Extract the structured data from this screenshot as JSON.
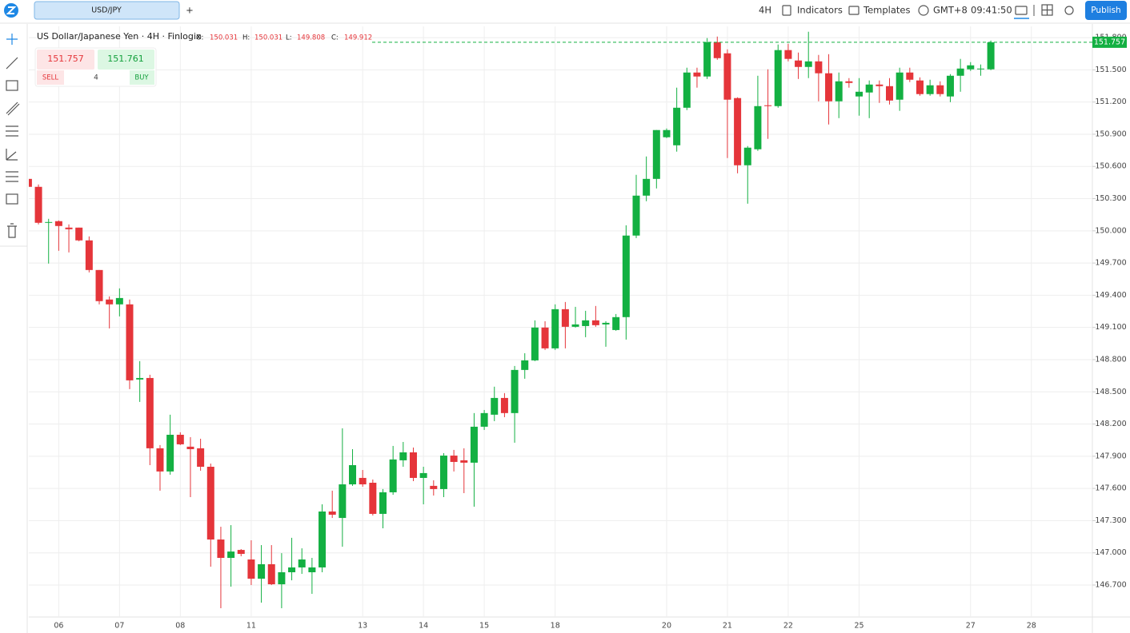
{
  "toolbar": {
    "tab": "USD/JPY",
    "add": "+",
    "interval": "4H",
    "indicators": "Indicators",
    "templates": "Templates",
    "timezone": "GMT+8",
    "clock": "09:41:50",
    "publish": "Publish"
  },
  "trade": {
    "sell_price": 151.757,
    "buy_price": 151.761,
    "sell": "SELL",
    "buy": "BUY",
    "quantity": 4
  },
  "chart_data": {
    "type": "candlestick",
    "title": "US Dollar/Japanese Yen · 4H · Finlogix",
    "ohlc_legend": [
      {
        "label": "O:",
        "value": 150.031
      },
      {
        "label": "H:",
        "value": 150.031
      },
      {
        "label": "L:",
        "value": 149.808
      },
      {
        "label": "C:",
        "value": 149.912
      }
    ],
    "up_color": "#13b042",
    "down_color": "#e5353a",
    "grid": true,
    "last_price": 151.757,
    "ylim": [
      146.402,
      151.905
    ],
    "yticks": [
      {
        "value": 146.7,
        "label": "146.700"
      },
      {
        "value": 147,
        "label": "147.000"
      },
      {
        "value": 147.3,
        "label": "147.300"
      },
      {
        "value": 147.6,
        "label": "147.600"
      },
      {
        "value": 147.9,
        "label": "147.900"
      },
      {
        "value": 148.2,
        "label": "148.200"
      },
      {
        "value": 148.5,
        "label": "148.500"
      },
      {
        "value": 148.8,
        "label": "148.800"
      },
      {
        "value": 149.1,
        "label": "149.100"
      },
      {
        "value": 149.4,
        "label": "149.400"
      },
      {
        "value": 149.7,
        "label": "149.700"
      },
      {
        "value": 150,
        "label": "150.000"
      },
      {
        "value": 150.3,
        "label": "150.300"
      },
      {
        "value": 150.6,
        "label": "150.600"
      },
      {
        "value": 150.9,
        "label": "150.900"
      },
      {
        "value": 151.2,
        "label": "151.200"
      },
      {
        "value": 151.5,
        "label": "151.500"
      },
      {
        "value": 151.8,
        "label": "151.800"
      }
    ],
    "categories": [
      null,
      null,
      null,
      "06",
      null,
      null,
      null,
      null,
      null,
      "07",
      null,
      null,
      null,
      null,
      null,
      "08",
      null,
      null,
      null,
      null,
      null,
      null,
      "11",
      null,
      null,
      null,
      null,
      null,
      null,
      null,
      null,
      null,
      null,
      "13",
      null,
      null,
      null,
      null,
      null,
      "14",
      null,
      null,
      null,
      null,
      null,
      "15",
      null,
      null,
      null,
      null,
      null,
      null,
      "18",
      null,
      null,
      null,
      null,
      null,
      null,
      null,
      null,
      null,
      null,
      "20",
      null,
      null,
      null,
      null,
      null,
      "21",
      null,
      null,
      null,
      null,
      null,
      "22",
      null,
      null,
      null,
      null,
      null,
      null,
      "25",
      null,
      null,
      null,
      null,
      null,
      null,
      null,
      null,
      null,
      null,
      "27",
      null,
      null,
      null,
      null,
      null,
      "28",
      null,
      null,
      null,
      null,
      null
    ],
    "open": [
      150.484,
      150.41,
      150.075,
      150.09,
      150.03,
      150.03,
      149.911,
      149.635,
      149.36,
      149.315,
      149.315,
      148.615,
      148.629,
      147.974,
      147.758,
      148.1,
      147.989,
      147.974,
      147.802,
      147.124,
      146.953,
      147.027,
      146.938,
      146.759,
      146.894,
      146.707,
      146.819,
      146.864,
      146.819,
      146.864,
      147.385,
      147.325,
      147.638,
      147.698,
      147.653,
      147.363,
      147.564,
      147.862,
      147.936,
      147.698,
      147.624,
      147.594,
      147.906,
      147.862,
      147.84,
      148.175,
      148.287,
      148.443,
      148.302,
      148.704,
      148.793,
      149.099,
      148.905,
      149.27,
      149.106,
      149.113,
      149.166,
      149.128,
      149.076,
      149.196,
      149.956,
      150.328,
      150.484,
      150.872,
      150.797,
      151.147,
      151.475,
      151.438,
      151.758,
      151.654,
      151.237,
      150.611,
      150.76,
      151.17,
      151.162,
      151.684,
      151.587,
      151.527,
      151.579,
      151.468,
      151.207,
      151.393,
      151.252,
      151.289,
      151.363,
      151.348,
      151.222,
      151.475,
      151.401,
      151.274,
      151.356,
      151.252,
      151.445,
      151.505,
      151.505,
      151.505,
      null,
      null,
      null,
      null,
      null,
      null,
      null,
      null,
      null
    ],
    "high": [
      150.499,
      150.432,
      150.112,
      150.097,
      150.06,
      150.03,
      149.948,
      149.635,
      149.389,
      149.464,
      149.36,
      148.786,
      148.659,
      148.004,
      148.287,
      148.123,
      148.078,
      148.063,
      147.832,
      147.243,
      147.258,
      147.035,
      147.117,
      147.072,
      147.072,
      146.997,
      147.14,
      147.042,
      146.953,
      147.452,
      147.579,
      148.16,
      147.966,
      147.772,
      147.683,
      147.594,
      147.996,
      148.033,
      147.981,
      147.802,
      147.676,
      147.929,
      147.959,
      147.974,
      148.302,
      148.331,
      148.548,
      148.488,
      148.741,
      148.86,
      149.166,
      149.158,
      149.315,
      149.337,
      149.292,
      149.255,
      149.3,
      149.158,
      149.225,
      150.052,
      150.522,
      150.693,
      150.939,
      150.954,
      151.334,
      151.52,
      151.52,
      151.796,
      151.81,
      151.691,
      151.244,
      150.79,
      151.445,
      151.505,
      151.736,
      151.743,
      151.661,
      151.855,
      151.639,
      151.646,
      151.475,
      151.423,
      151.423,
      151.401,
      151.401,
      151.423,
      151.52,
      151.52,
      151.43,
      151.408,
      151.393,
      151.46,
      151.602,
      151.572,
      151.55,
      151.773,
      null,
      null,
      null,
      null,
      null,
      null,
      null,
      null,
      null
    ],
    "low": [
      150.395,
      150.06,
      149.695,
      149.814,
      149.799,
      149.903,
      149.613,
      149.315,
      149.091,
      149.203,
      148.525,
      148.406,
      147.817,
      147.579,
      147.728,
      148.004,
      147.519,
      147.765,
      146.871,
      146.484,
      146.685,
      146.968,
      146.7,
      146.536,
      146.7,
      146.484,
      146.744,
      146.804,
      146.618,
      146.819,
      147.325,
      147.057,
      147.624,
      147.616,
      147.348,
      147.229,
      147.541,
      147.802,
      147.668,
      147.452,
      147.534,
      147.519,
      147.758,
      147.556,
      147.43,
      148.145,
      148.227,
      148.264,
      148.026,
      148.622,
      148.786,
      148.89,
      148.89,
      148.905,
      149.099,
      149.009,
      149.106,
      148.92,
      149.069,
      148.987,
      149.933,
      150.276,
      150.395,
      150.864,
      150.738,
      151.125,
      151.334,
      151.415,
      151.594,
      150.678,
      150.536,
      150.253,
      150.745,
      150.857,
      151.147,
      151.579,
      151.415,
      151.423,
      151.207,
      150.991,
      151.05,
      151.334,
      151.073,
      151.05,
      151.192,
      151.177,
      151.118,
      151.386,
      151.259,
      151.259,
      151.252,
      151.199,
      151.296,
      151.49,
      151.445,
      151.497,
      null,
      null,
      null,
      null,
      null,
      null,
      null,
      null,
      null
    ],
    "close": [
      150.41,
      150.075,
      150.082,
      150.045,
      150.015,
      149.911,
      149.635,
      149.345,
      149.315,
      149.374,
      148.607,
      148.629,
      147.974,
      147.758,
      148.1,
      148.011,
      147.966,
      147.802,
      147.124,
      146.953,
      147.012,
      146.99,
      146.759,
      146.894,
      146.707,
      146.819,
      146.864,
      146.938,
      146.864,
      147.385,
      147.355,
      147.638,
      147.817,
      147.638,
      147.363,
      147.564,
      147.87,
      147.936,
      147.698,
      147.743,
      147.594,
      147.906,
      147.847,
      147.84,
      148.175,
      148.302,
      148.443,
      148.302,
      148.704,
      148.793,
      149.099,
      148.905,
      149.27,
      149.106,
      149.128,
      149.166,
      149.121,
      149.143,
      149.196,
      149.956,
      150.328,
      150.484,
      150.939,
      150.939,
      151.147,
      151.475,
      151.438,
      151.758,
      151.609,
      151.222,
      150.611,
      150.775,
      151.162,
      151.162,
      151.684,
      151.602,
      151.527,
      151.579,
      151.468,
      151.207,
      151.393,
      151.378,
      151.296,
      151.363,
      151.348,
      151.214,
      151.475,
      151.408,
      151.274,
      151.356,
      151.274,
      151.445,
      151.512,
      151.542,
      151.512,
      151.757,
      null,
      null,
      null,
      null,
      null,
      null,
      null,
      null,
      null
    ]
  }
}
